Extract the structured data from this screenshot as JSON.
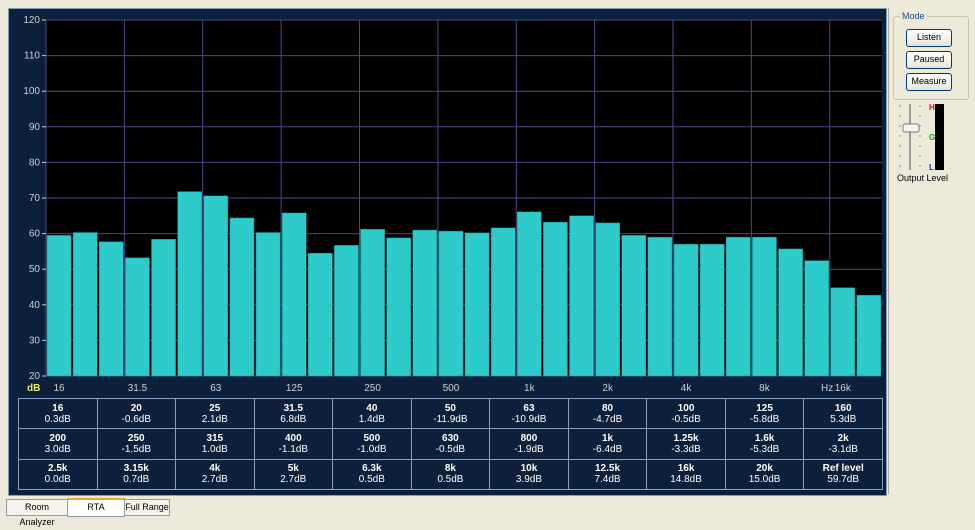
{
  "chart_data": {
    "type": "bar",
    "ylim": [
      20,
      120
    ],
    "yticks": [
      "20",
      "30",
      "40",
      "50",
      "60",
      "70",
      "80",
      "90",
      "100",
      "110",
      "120"
    ],
    "ylabel": "dB",
    "xunit": "Hz",
    "xticks": [
      "16",
      "31.5",
      "63",
      "125",
      "250",
      "500",
      "1k",
      "2k",
      "4k",
      "8k",
      "16k"
    ],
    "bands": [
      "16",
      "20",
      "25",
      "31.5",
      "40",
      "50",
      "63",
      "80",
      "100",
      "125",
      "160",
      "200",
      "250",
      "315",
      "400",
      "500",
      "630",
      "800",
      "1k",
      "1.25k",
      "1.6k",
      "2k",
      "2.5k",
      "3.15k",
      "4k",
      "5k",
      "6.3k",
      "8k",
      "10k",
      "12.5k",
      "16k",
      "20k"
    ],
    "values": [
      59.5,
      60.3,
      57.7,
      53.2,
      58.4,
      71.8,
      70.6,
      64.4,
      60.3,
      65.8,
      54.5,
      56.7,
      61.2,
      58.8,
      61.0,
      60.7,
      60.2,
      61.6,
      66.1,
      63.2,
      65.0,
      63.0,
      59.5,
      59.0,
      57.0,
      57.0,
      59.0,
      59.0,
      55.7,
      52.4,
      44.8,
      42.7
    ],
    "color": "#2ecbcb"
  },
  "table": [
    [
      {
        "k": "16",
        "v": "0.3dB"
      },
      {
        "k": "20",
        "v": "-0.6dB"
      },
      {
        "k": "25",
        "v": "2.1dB"
      },
      {
        "k": "31.5",
        "v": "6.8dB"
      },
      {
        "k": "40",
        "v": "1.4dB"
      },
      {
        "k": "50",
        "v": "-11.9dB"
      },
      {
        "k": "63",
        "v": "-10.9dB"
      },
      {
        "k": "80",
        "v": "-4.7dB"
      },
      {
        "k": "100",
        "v": "-0.5dB"
      },
      {
        "k": "125",
        "v": "-5.8dB"
      },
      {
        "k": "160",
        "v": "5.3dB"
      }
    ],
    [
      {
        "k": "200",
        "v": "3.0dB"
      },
      {
        "k": "250",
        "v": "-1.5dB"
      },
      {
        "k": "315",
        "v": "1.0dB"
      },
      {
        "k": "400",
        "v": "-1.1dB"
      },
      {
        "k": "500",
        "v": "-1.0dB"
      },
      {
        "k": "630",
        "v": "-0.5dB"
      },
      {
        "k": "800",
        "v": "-1.9dB"
      },
      {
        "k": "1k",
        "v": "-6.4dB"
      },
      {
        "k": "1.25k",
        "v": "-3.3dB"
      },
      {
        "k": "1.6k",
        "v": "-5.3dB"
      },
      {
        "k": "2k",
        "v": "-3.1dB"
      }
    ],
    [
      {
        "k": "2.5k",
        "v": "0.0dB"
      },
      {
        "k": "3.15k",
        "v": "0.7dB"
      },
      {
        "k": "4k",
        "v": "2.7dB"
      },
      {
        "k": "5k",
        "v": "2.7dB"
      },
      {
        "k": "6.3k",
        "v": "0.5dB"
      },
      {
        "k": "8k",
        "v": "0.5dB"
      },
      {
        "k": "10k",
        "v": "3.9dB"
      },
      {
        "k": "12.5k",
        "v": "7.4dB"
      },
      {
        "k": "16k",
        "v": "14.8dB"
      },
      {
        "k": "20k",
        "v": "15.0dB"
      },
      {
        "k": "Ref level",
        "v": "59.7dB"
      }
    ]
  ],
  "mode": {
    "legend": "Mode",
    "listen": "Listen",
    "paused": "Paused",
    "measure": "Measure"
  },
  "meter": {
    "label": "Output Level",
    "high": "H",
    "good": "G",
    "low": "L"
  },
  "tabs": [
    "Room Analyzer",
    "RTA",
    "Full Range"
  ],
  "active_tab": "RTA"
}
